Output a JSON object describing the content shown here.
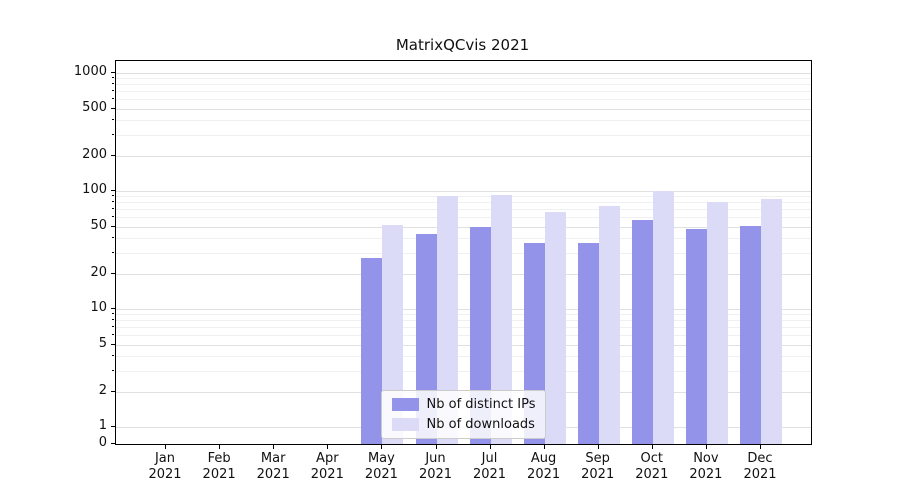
{
  "title": "MatrixQCvis 2021",
  "chart_data": {
    "type": "bar",
    "title": "MatrixQCvis 2021",
    "y_scale": "symlog",
    "grid": true,
    "grid_color": "#e0e0e0",
    "legend_position": "lower center",
    "categories": [
      "Jan 2021",
      "Feb 2021",
      "Mar 2021",
      "Apr 2021",
      "May 2021",
      "Jun 2021",
      "Jul 2021",
      "Aug 2021",
      "Sep 2021",
      "Oct 2021",
      "Nov 2021",
      "Dec 2021"
    ],
    "series": [
      {
        "name": "Nb of distinct IPs",
        "color": "#9393e9",
        "values": [
          0,
          0,
          0,
          0,
          27,
          43,
          50,
          36,
          36,
          57,
          48,
          51
        ]
      },
      {
        "name": "Nb of downloads",
        "color": "#dbdbf7",
        "values": [
          0,
          0,
          0,
          0,
          52,
          90,
          93,
          66,
          74,
          100,
          80,
          85
        ]
      }
    ],
    "yticks": [
      0,
      1,
      2,
      5,
      10,
      20,
      50,
      100,
      200,
      500,
      1000
    ],
    "ylim": [
      0,
      1260
    ],
    "xlabel": "",
    "ylabel": ""
  }
}
